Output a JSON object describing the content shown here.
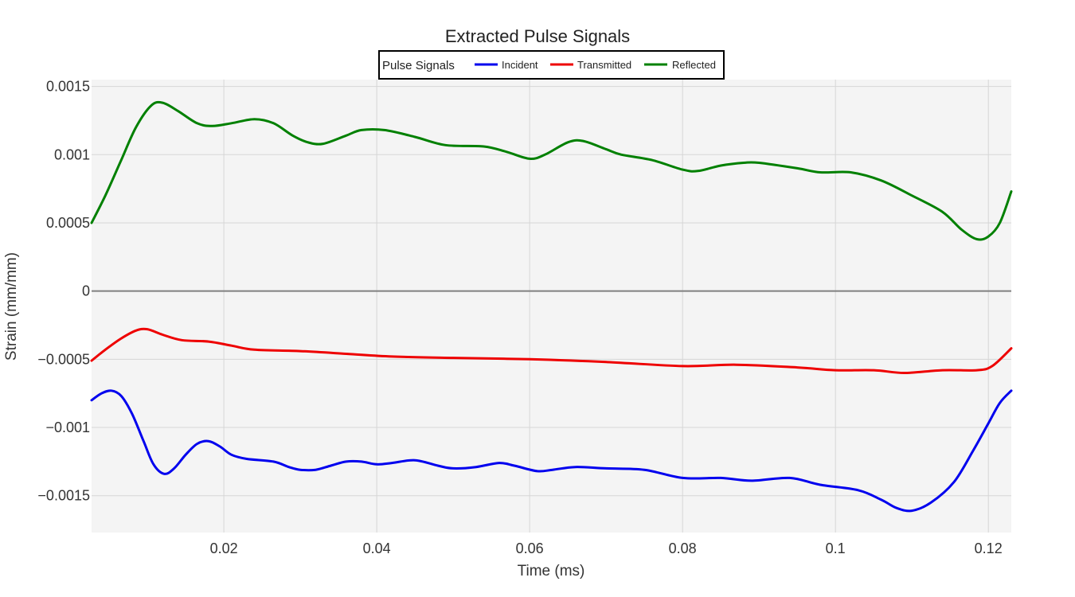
{
  "chart_data": {
    "type": "line",
    "title": "Extracted Pulse Signals",
    "xlabel": "Time (ms)",
    "ylabel": "Strain (mm/mm)",
    "xlim": [
      0.0027,
      0.123
    ],
    "ylim": [
      -0.00177,
      0.00155
    ],
    "x_ticks": [
      0.02,
      0.04,
      0.06,
      0.08,
      0.1,
      0.12
    ],
    "x_tick_labels": [
      "0.02",
      "0.04",
      "0.06",
      "0.08",
      "0.1",
      "0.12"
    ],
    "y_ticks": [
      0.0015,
      0.001,
      0.0005,
      0,
      -0.0005,
      -0.001,
      -0.0015
    ],
    "y_tick_labels": [
      "0.0015",
      "0.001",
      "0.0005",
      "0",
      "−0.0005",
      "−0.001",
      "−0.0015"
    ],
    "grid": true,
    "background_color": "#f4f4f4",
    "legend": {
      "title": "Pulse Signals",
      "placement": "top-center",
      "orientation": "horizontal"
    },
    "series": [
      {
        "name": "Incident",
        "color": "#0000ee",
        "points": [
          [
            0.0027,
            -0.0008
          ],
          [
            0.004,
            -0.00075
          ],
          [
            0.0053,
            -0.00073
          ],
          [
            0.0066,
            -0.00077
          ],
          [
            0.008,
            -0.0009
          ],
          [
            0.0095,
            -0.0011
          ],
          [
            0.0108,
            -0.00127
          ],
          [
            0.0122,
            -0.00134
          ],
          [
            0.0135,
            -0.0013
          ],
          [
            0.015,
            -0.0012
          ],
          [
            0.0165,
            -0.00112
          ],
          [
            0.018,
            -0.0011
          ],
          [
            0.0195,
            -0.00114
          ],
          [
            0.021,
            -0.0012
          ],
          [
            0.023,
            -0.00123
          ],
          [
            0.0265,
            -0.00125
          ],
          [
            0.0285,
            -0.00129
          ],
          [
            0.03,
            -0.00131
          ],
          [
            0.032,
            -0.00131
          ],
          [
            0.034,
            -0.00128
          ],
          [
            0.036,
            -0.00125
          ],
          [
            0.038,
            -0.00125
          ],
          [
            0.04,
            -0.00127
          ],
          [
            0.042,
            -0.00126
          ],
          [
            0.045,
            -0.00124
          ],
          [
            0.048,
            -0.00128
          ],
          [
            0.05,
            -0.0013
          ],
          [
            0.053,
            -0.00129
          ],
          [
            0.056,
            -0.00126
          ],
          [
            0.058,
            -0.00128
          ],
          [
            0.061,
            -0.00132
          ],
          [
            0.063,
            -0.00131
          ],
          [
            0.066,
            -0.00129
          ],
          [
            0.07,
            -0.0013
          ],
          [
            0.075,
            -0.00131
          ],
          [
            0.08,
            -0.00137
          ],
          [
            0.085,
            -0.00137
          ],
          [
            0.089,
            -0.00139
          ],
          [
            0.094,
            -0.00137
          ],
          [
            0.098,
            -0.00142
          ],
          [
            0.103,
            -0.00146
          ],
          [
            0.106,
            -0.00153
          ],
          [
            0.108,
            -0.00159
          ],
          [
            0.11,
            -0.00161
          ],
          [
            0.1125,
            -0.00155
          ],
          [
            0.1155,
            -0.0014
          ],
          [
            0.118,
            -0.00117
          ],
          [
            0.12,
            -0.00097
          ],
          [
            0.1215,
            -0.00082
          ],
          [
            0.123,
            -0.00073
          ]
        ]
      },
      {
        "name": "Transmitted",
        "color": "#ee0000",
        "points": [
          [
            0.0027,
            -0.00051
          ],
          [
            0.0045,
            -0.00043
          ],
          [
            0.0065,
            -0.00035
          ],
          [
            0.0085,
            -0.00029
          ],
          [
            0.01,
            -0.00028
          ],
          [
            0.012,
            -0.00032
          ],
          [
            0.0145,
            -0.00036
          ],
          [
            0.018,
            -0.00037
          ],
          [
            0.021,
            -0.0004
          ],
          [
            0.024,
            -0.00043
          ],
          [
            0.03,
            -0.00044
          ],
          [
            0.036,
            -0.00046
          ],
          [
            0.042,
            -0.00048
          ],
          [
            0.05,
            -0.00049
          ],
          [
            0.06,
            -0.0005
          ],
          [
            0.07,
            -0.00052
          ],
          [
            0.08,
            -0.00055
          ],
          [
            0.087,
            -0.00054
          ],
          [
            0.095,
            -0.00056
          ],
          [
            0.1,
            -0.00058
          ],
          [
            0.105,
            -0.00058
          ],
          [
            0.109,
            -0.0006
          ],
          [
            0.114,
            -0.00058
          ],
          [
            0.1185,
            -0.00058
          ],
          [
            0.1205,
            -0.00055
          ],
          [
            0.123,
            -0.00042
          ]
        ]
      },
      {
        "name": "Reflected",
        "color": "#008000",
        "points": [
          [
            0.0027,
            0.0005
          ],
          [
            0.0045,
            0.0007
          ],
          [
            0.0065,
            0.00095
          ],
          [
            0.0085,
            0.0012
          ],
          [
            0.0105,
            0.00136
          ],
          [
            0.012,
            0.00138
          ],
          [
            0.014,
            0.00132
          ],
          [
            0.0165,
            0.00123
          ],
          [
            0.0185,
            0.00121
          ],
          [
            0.021,
            0.00123
          ],
          [
            0.024,
            0.00126
          ],
          [
            0.0265,
            0.00123
          ],
          [
            0.029,
            0.00114
          ],
          [
            0.031,
            0.00109
          ],
          [
            0.033,
            0.00108
          ],
          [
            0.036,
            0.00114
          ],
          [
            0.038,
            0.00118
          ],
          [
            0.041,
            0.00118
          ],
          [
            0.045,
            0.00113
          ],
          [
            0.049,
            0.00107
          ],
          [
            0.054,
            0.00106
          ],
          [
            0.057,
            0.00102
          ],
          [
            0.06,
            0.00097
          ],
          [
            0.062,
            0.001
          ],
          [
            0.065,
            0.00109
          ],
          [
            0.067,
            0.0011
          ],
          [
            0.07,
            0.00104
          ],
          [
            0.072,
            0.001
          ],
          [
            0.076,
            0.00096
          ],
          [
            0.08,
            0.00089
          ],
          [
            0.082,
            0.00088
          ],
          [
            0.085,
            0.00092
          ],
          [
            0.088,
            0.00094
          ],
          [
            0.09,
            0.00094
          ],
          [
            0.095,
            0.0009
          ],
          [
            0.098,
            0.00087
          ],
          [
            0.102,
            0.00087
          ],
          [
            0.106,
            0.00081
          ],
          [
            0.11,
            0.0007
          ],
          [
            0.114,
            0.00058
          ],
          [
            0.1165,
            0.00045
          ],
          [
            0.1185,
            0.00038
          ],
          [
            0.12,
            0.0004
          ],
          [
            0.1215,
            0.0005
          ],
          [
            0.123,
            0.00073
          ]
        ]
      }
    ]
  }
}
